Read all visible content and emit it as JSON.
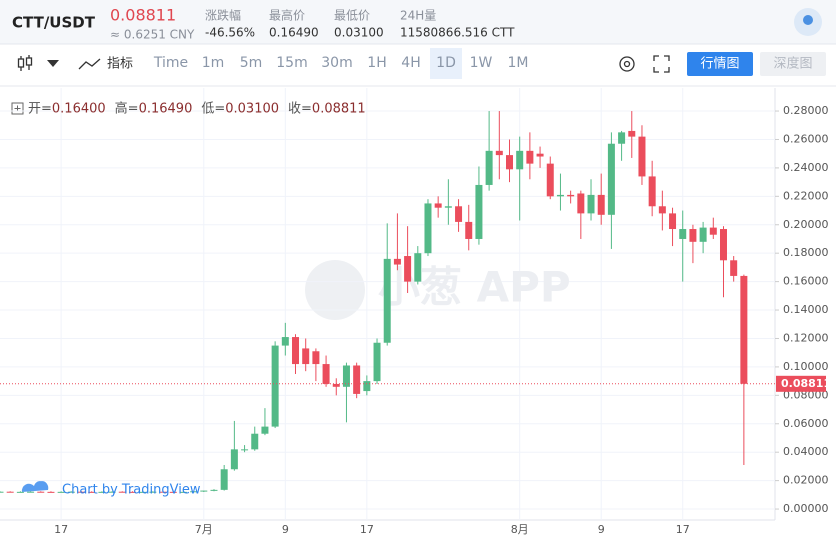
{
  "header": {
    "pair": "CTT/USDT",
    "price": "0.08811",
    "price_cny": "≈ 0.6251 CNY",
    "stats": [
      {
        "label": "涨跌幅",
        "value": "-46.56%"
      },
      {
        "label": "最高价",
        "value": "0.16490"
      },
      {
        "label": "最低价",
        "value": "0.03100"
      },
      {
        "label": "24H量",
        "value": "11580866.516 CTT"
      }
    ]
  },
  "toolbar": {
    "indicator": "指标",
    "intervals": [
      "Time",
      "1m",
      "5m",
      "15m",
      "30m",
      "1H",
      "4H",
      "1D",
      "1W",
      "1M"
    ],
    "active_interval": 7,
    "buttons": [
      "行情图",
      "深度图"
    ]
  },
  "chart_data": {
    "type": "candlestick",
    "legend": [
      {
        "label": "开=",
        "value": "0.16400"
      },
      {
        "label": "高=",
        "value": "0.16490"
      },
      {
        "label": "低=",
        "value": "0.03100"
      },
      {
        "label": "收=",
        "value": "0.08811"
      }
    ],
    "watermark": "小葱 APP",
    "attribution": "Chart by TradingView",
    "up_color": "#53b987",
    "down_color": "#eb4d5c",
    "categories": [
      null,
      null,
      null,
      null,
      null,
      null,
      "17",
      null,
      null,
      null,
      null,
      null,
      null,
      null,
      null,
      null,
      null,
      null,
      null,
      null,
      "7月",
      null,
      null,
      null,
      null,
      null,
      null,
      null,
      "9",
      null,
      null,
      null,
      null,
      null,
      null,
      null,
      "17",
      null,
      null,
      null,
      null,
      null,
      null,
      null,
      null,
      null,
      null,
      null,
      null,
      null,
      null,
      "8月",
      null,
      null,
      null,
      null,
      null,
      null,
      null,
      "9",
      null,
      null,
      null,
      null,
      null,
      null,
      null,
      "17",
      null,
      null,
      null,
      null,
      null,
      null
    ],
    "open": [
      0.0121,
      0.0122,
      0.012,
      0.0121,
      0.0122,
      0.0121,
      0.012,
      0.0121,
      0.0122,
      0.0121,
      0.012,
      0.0121,
      0.0122,
      0.0121,
      0.012,
      0.0121,
      0.0122,
      0.0121,
      0.012,
      0.0121,
      0.0125,
      0.013,
      0.0135,
      0.028,
      0.042,
      0.042,
      0.053,
      0.058,
      0.115,
      0.121,
      0.113,
      0.111,
      0.102,
      0.088,
      0.086,
      0.101,
      0.083,
      0.09,
      0.117,
      0.176,
      0.178,
      0.16,
      0.18,
      0.215,
      0.212,
      0.213,
      0.202,
      0.19,
      0.228,
      0.252,
      0.249,
      0.239,
      0.252,
      0.25,
      0.243,
      0.22,
      0.221,
      0.222,
      0.208,
      0.221,
      0.207,
      0.257,
      0.266,
      0.262,
      0.234,
      0.213,
      0.208,
      0.19,
      0.197,
      0.188,
      0.198,
      0.197,
      0.175,
      0.164
    ],
    "high": [
      0.0125,
      0.0125,
      0.0125,
      0.0125,
      0.0125,
      0.0125,
      0.0125,
      0.0125,
      0.0125,
      0.0125,
      0.0125,
      0.0125,
      0.0125,
      0.0125,
      0.0125,
      0.0125,
      0.0125,
      0.0125,
      0.0125,
      0.0125,
      0.013,
      0.014,
      0.031,
      0.062,
      0.045,
      0.058,
      0.071,
      0.118,
      0.131,
      0.123,
      0.12,
      0.113,
      0.108,
      0.092,
      0.103,
      0.103,
      0.094,
      0.12,
      0.201,
      0.208,
      0.199,
      0.185,
      0.218,
      0.22,
      0.232,
      0.218,
      0.214,
      0.241,
      0.28,
      0.28,
      0.26,
      0.262,
      0.265,
      0.255,
      0.248,
      0.236,
      0.224,
      0.224,
      0.232,
      0.236,
      0.265,
      0.266,
      0.28,
      0.27,
      0.245,
      0.224,
      0.212,
      0.21,
      0.2,
      0.202,
      0.205,
      0.199,
      0.178,
      0.1649
    ],
    "low": [
      0.0117,
      0.0117,
      0.0117,
      0.0117,
      0.0117,
      0.0117,
      0.0117,
      0.0117,
      0.0117,
      0.0117,
      0.0117,
      0.0117,
      0.0117,
      0.0117,
      0.0117,
      0.0117,
      0.0117,
      0.0117,
      0.0117,
      0.0117,
      0.012,
      0.0125,
      0.013,
      0.027,
      0.04,
      0.041,
      0.052,
      0.057,
      0.108,
      0.095,
      0.097,
      0.09,
      0.086,
      0.08,
      0.061,
      0.078,
      0.08,
      0.088,
      0.115,
      0.168,
      0.152,
      0.158,
      0.178,
      0.205,
      0.2,
      0.195,
      0.182,
      0.186,
      0.224,
      0.232,
      0.23,
      0.203,
      0.232,
      0.24,
      0.218,
      0.21,
      0.215,
      0.19,
      0.203,
      0.2,
      0.183,
      0.245,
      0.247,
      0.228,
      0.206,
      0.196,
      0.185,
      0.16,
      0.173,
      0.18,
      0.19,
      0.149,
      0.16,
      0.031
    ],
    "close": [
      0.0122,
      0.012,
      0.0121,
      0.0122,
      0.0121,
      0.012,
      0.0121,
      0.0122,
      0.0121,
      0.012,
      0.0121,
      0.0122,
      0.0121,
      0.012,
      0.0121,
      0.0122,
      0.0121,
      0.012,
      0.0121,
      0.0125,
      0.013,
      0.0135,
      0.028,
      0.042,
      0.042,
      0.053,
      0.058,
      0.115,
      0.121,
      0.102,
      0.102,
      0.102,
      0.088,
      0.086,
      0.101,
      0.081,
      0.09,
      0.117,
      0.176,
      0.172,
      0.16,
      0.18,
      0.215,
      0.212,
      0.213,
      0.202,
      0.19,
      0.228,
      0.252,
      0.249,
      0.239,
      0.252,
      0.243,
      0.248,
      0.22,
      0.221,
      0.22,
      0.208,
      0.221,
      0.207,
      0.257,
      0.265,
      0.262,
      0.234,
      0.213,
      0.208,
      0.197,
      0.197,
      0.188,
      0.198,
      0.193,
      0.175,
      0.164,
      0.08811
    ],
    "ylim": [
      -0.0077,
      0.2948
    ],
    "yticks": [
      {
        "value": 0,
        "label": "0.00000"
      },
      {
        "value": 0.02,
        "label": "0.02000"
      },
      {
        "value": 0.04,
        "label": "0.04000"
      },
      {
        "value": 0.06,
        "label": "0.06000"
      },
      {
        "value": 0.08,
        "label": "0.08000"
      },
      {
        "value": 0.1,
        "label": "0.10000"
      },
      {
        "value": 0.12,
        "label": "0.12000"
      },
      {
        "value": 0.14,
        "label": "0.14000"
      },
      {
        "value": 0.16,
        "label": "0.16000"
      },
      {
        "value": 0.18,
        "label": "0.18000"
      },
      {
        "value": 0.2,
        "label": "0.20000"
      },
      {
        "value": 0.22,
        "label": "0.22000"
      },
      {
        "value": 0.24,
        "label": "0.24000"
      },
      {
        "value": 0.26,
        "label": "0.26000"
      },
      {
        "value": 0.28,
        "label": "0.28000"
      }
    ],
    "grid": true
  }
}
